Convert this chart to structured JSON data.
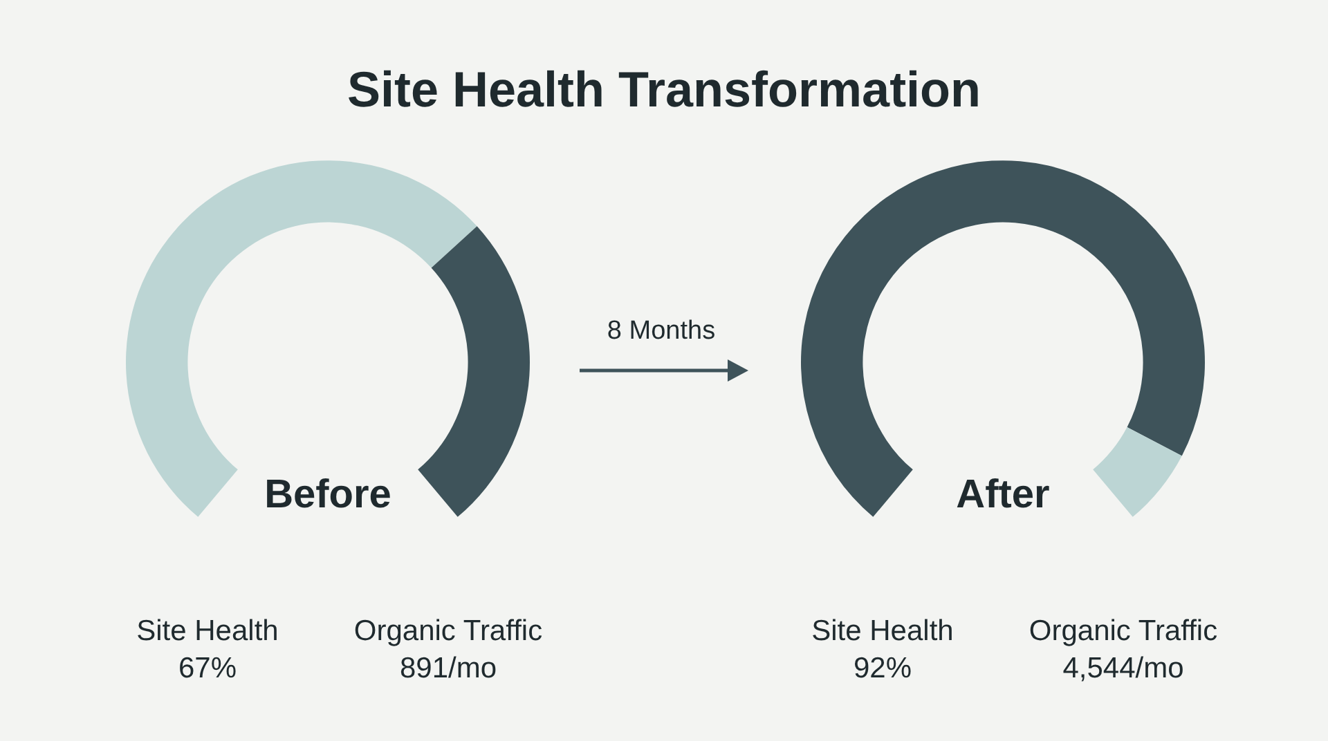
{
  "chart_data": [
    {
      "type": "donut",
      "title": "Site Health Transformation",
      "subtitle": "Before",
      "categories": [
        null,
        null
      ],
      "values": [
        67,
        33
      ],
      "colors": [
        "#bcd5d4",
        "#3e535a"
      ],
      "annotations": [
        "Site Health",
        "67%",
        "Organic Traffic",
        "891/mo",
        "8 Months"
      ]
    },
    {
      "type": "donut",
      "subtitle": "After",
      "categories": [
        null,
        null
      ],
      "values": [
        92,
        8
      ],
      "colors": [
        "#3e535a",
        "#bcd5d4"
      ],
      "annotations": [
        "Site Health",
        "92%",
        "Organic Traffic",
        "4,544/mo"
      ]
    }
  ]
}
